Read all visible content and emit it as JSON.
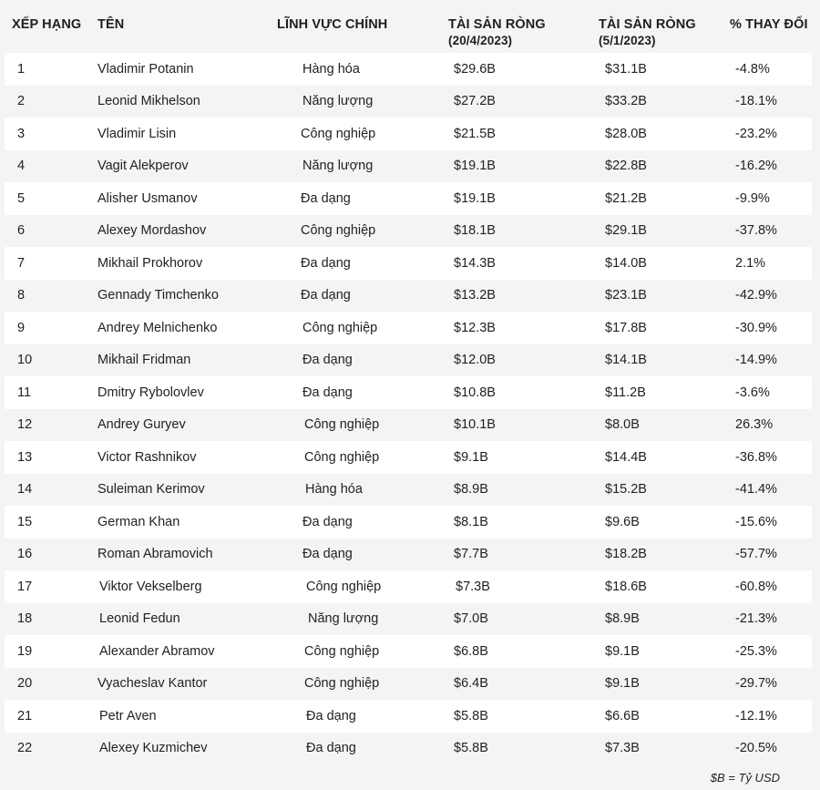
{
  "headers": {
    "rank": "XẾP HẠNG",
    "name": "TÊN",
    "sector": "LĨNH VỰC CHÍNH",
    "net_worth_1": "TÀI SẢN RÒNG",
    "net_worth_1_date": "(20/4/2023)",
    "net_worth_2": "TÀI SẢN RÒNG",
    "net_worth_2_date": "(5/1/2023)",
    "change": "% THAY ĐỔI"
  },
  "rows": [
    {
      "rank": "1",
      "name": "Vladimir Potanin",
      "sector": "Hàng hóa",
      "nw1": "$29.6B",
      "nw2": "$31.1B",
      "change": "-4.8%"
    },
    {
      "rank": "2",
      "name": "Leonid Mikhelson",
      "sector": "Năng lượng",
      "nw1": "$27.2B",
      "nw2": "$33.2B",
      "change": "-18.1%"
    },
    {
      "rank": "3",
      "name": "Vladimir Lisin",
      "sector": "Công nghiệp",
      "nw1": "$21.5B",
      "nw2": "$28.0B",
      "change": "-23.2%"
    },
    {
      "rank": "4",
      "name": "Vagit Alekperov",
      "sector": "Năng lượng",
      "nw1": "$19.1B",
      "nw2": "$22.8B",
      "change": "-16.2%"
    },
    {
      "rank": "5",
      "name": "Alisher Usmanov",
      "sector": "Đa dạng",
      "nw1": "$19.1B",
      "nw2": "$21.2B",
      "change": "-9.9%"
    },
    {
      "rank": "6",
      "name": "Alexey Mordashov",
      "sector": "Công nghiệp",
      "nw1": "$18.1B",
      "nw2": "$29.1B",
      "change": "-37.8%"
    },
    {
      "rank": "7",
      "name": "Mikhail Prokhorov",
      "sector": "Đa dạng",
      "nw1": "$14.3B",
      "nw2": "$14.0B",
      "change": "2.1%"
    },
    {
      "rank": "8",
      "name": "Gennady Timchenko",
      "sector": "Đa dạng",
      "nw1": "$13.2B",
      "nw2": "$23.1B",
      "change": "-42.9%"
    },
    {
      "rank": "9",
      "name": "Andrey Melnichenko",
      "sector": "Công nghiệp",
      "nw1": "$12.3B",
      "nw2": "$17.8B",
      "change": "-30.9%"
    },
    {
      "rank": "10",
      "name": "Mikhail Fridman",
      "sector": "Đa dạng",
      "nw1": "$12.0B",
      "nw2": "$14.1B",
      "change": "-14.9%"
    },
    {
      "rank": "11",
      "name": "Dmitry Rybolovlev",
      "sector": "Đa dạng",
      "nw1": "$10.8B",
      "nw2": "$11.2B",
      "change": "-3.6%"
    },
    {
      "rank": "12",
      "name": "Andrey Guryev",
      "sector": "Công nghiệp",
      "nw1": "$10.1B",
      "nw2": "$8.0B",
      "change": "26.3%"
    },
    {
      "rank": "13",
      "name": "Victor Rashnikov",
      "sector": "Công nghiệp",
      "nw1": "$9.1B",
      "nw2": "$14.4B",
      "change": "-36.8%"
    },
    {
      "rank": "14",
      "name": "Suleiman Kerimov",
      "sector": "Hàng hóa",
      "nw1": "$8.9B",
      "nw2": "$15.2B",
      "change": "-41.4%"
    },
    {
      "rank": "15",
      "name": "German Khan",
      "sector": "Đa dạng",
      "nw1": "$8.1B",
      "nw2": "$9.6B",
      "change": "-15.6%"
    },
    {
      "rank": "16",
      "name": "Roman Abramovich",
      "sector": "Đa dạng",
      "nw1": "$7.7B",
      "nw2": "$18.2B",
      "change": "-57.7%"
    },
    {
      "rank": "17",
      "name": "Viktor Vekselberg",
      "sector": "Công nghiệp",
      "nw1": "$7.3B",
      "nw2": "$18.6B",
      "change": "-60.8%"
    },
    {
      "rank": "18",
      "name": "Leonid Fedun",
      "sector": "Năng lượng",
      "nw1": "$7.0B",
      "nw2": "$8.9B",
      "change": "-21.3%"
    },
    {
      "rank": "19",
      "name": "Alexander Abramov",
      "sector": "Công nghiệp",
      "nw1": "$6.8B",
      "nw2": "$9.1B",
      "change": "-25.3%"
    },
    {
      "rank": "20",
      "name": "Vyacheslav Kantor",
      "sector": "Công nghiệp",
      "nw1": "$6.4B",
      "nw2": "$9.1B",
      "change": "-29.7%"
    },
    {
      "rank": "21",
      "name": "Petr Aven",
      "sector": "Đa dạng",
      "nw1": "$5.8B",
      "nw2": "$6.6B",
      "change": "-12.1%"
    },
    {
      "rank": "22",
      "name": "Alexey Kuzmichev",
      "sector": "Đa dạng",
      "nw1": "$5.8B",
      "nw2": "$7.3B",
      "change": "-20.5%"
    }
  ],
  "footnote": "$B = Tỷ USD",
  "colors": {
    "row_odd": "#ffffff",
    "row_even": "#f3f4f4",
    "text": "#222222"
  }
}
